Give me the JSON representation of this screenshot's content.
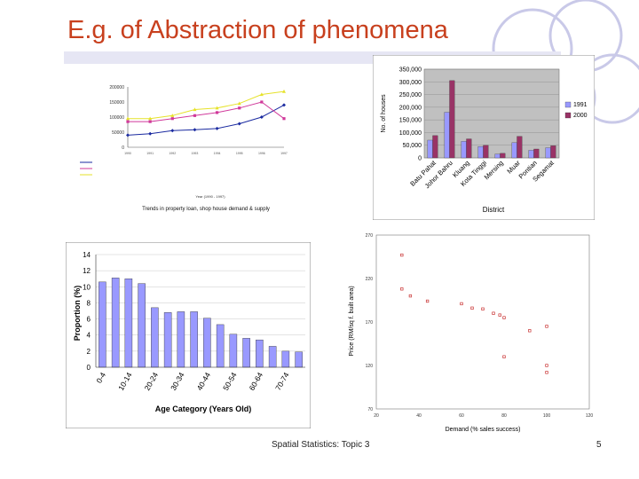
{
  "slide": {
    "title": "E.g. of Abstraction of phenomena",
    "footer": "Spatial Statistics: Topic 3",
    "page_number": "5",
    "colors": {
      "title": "#c8401e",
      "decor": "#c9c9e8"
    }
  },
  "chart_data": [
    {
      "type": "line",
      "title": "",
      "caption": "Trends in property loan, shop house demand & supply",
      "xlabel": "Year (1990 - 1997)",
      "ylabel": "",
      "ylim": [
        0,
        200000
      ],
      "yticks": [
        "0",
        "50000",
        "100000",
        "150000",
        "200000"
      ],
      "x": [
        "1990",
        "1991",
        "1992",
        "1993",
        "1994",
        "1995",
        "1996",
        "1997"
      ],
      "series": [
        {
          "color": "#1a2aa0",
          "marker": "diamond",
          "values": [
            40000,
            45000,
            55000,
            58000,
            62000,
            78000,
            100000,
            140000
          ]
        },
        {
          "color": "#d0389a",
          "marker": "square",
          "values": [
            85000,
            85000,
            95000,
            105000,
            115000,
            130000,
            150000,
            95000
          ]
        },
        {
          "color": "#e6e22a",
          "marker": "triangle",
          "values": [
            95000,
            95000,
            105000,
            125000,
            130000,
            145000,
            175000,
            185000
          ]
        }
      ],
      "legend_position": "bottom-table",
      "grid": false
    },
    {
      "type": "bar",
      "title": "",
      "xlabel": "District",
      "ylabel": "No. of houses",
      "ylim": [
        0,
        350000
      ],
      "yticks": [
        "0",
        "50,000",
        "100,000",
        "150,000",
        "200,000",
        "250,000",
        "300,000",
        "350,000"
      ],
      "categories": [
        "Batu Pahat",
        "Johor Bahru",
        "Kluang",
        "Kota Tinggi",
        "Mersing",
        "Muar",
        "Pontian",
        "Segamat"
      ],
      "series": [
        {
          "name": "1991",
          "color": "#9999ff",
          "values": [
            70000,
            180000,
            65000,
            45000,
            15000,
            60000,
            30000,
            40000
          ]
        },
        {
          "name": "2000",
          "color": "#993366",
          "values": [
            88000,
            305000,
            75000,
            50000,
            18000,
            85000,
            35000,
            48000
          ]
        }
      ],
      "legend_position": "right",
      "plot_background": "#c0c0c0",
      "grid": true
    },
    {
      "type": "bar",
      "title": "",
      "xlabel": "Age Category (Years Old)",
      "ylabel": "Proportion (%)",
      "ylim": [
        0,
        14
      ],
      "yticks": [
        "0",
        "2",
        "4",
        "6",
        "8",
        "10",
        "12",
        "14"
      ],
      "tick_labels": [
        "0-4",
        "10-14",
        "20-24",
        "30-34",
        "40-44",
        "50-54",
        "60-64",
        "70-74"
      ],
      "values": [
        10.6,
        11.1,
        11.0,
        10.4,
        7.4,
        6.8,
        6.9,
        6.9,
        6.1,
        5.3,
        4.1,
        3.6,
        3.4,
        2.6,
        2.0,
        1.9
      ],
      "color": "#9999ff",
      "grid": true
    },
    {
      "type": "scatter",
      "title": "",
      "xlabel": "Demand (% sales success)",
      "ylabel": "Price (RM/sq f. built area)",
      "xlim": [
        20,
        120
      ],
      "ylim": [
        70,
        270
      ],
      "xticks": [
        "20",
        "40",
        "60",
        "80",
        "100",
        "120"
      ],
      "yticks": [
        "70",
        "120",
        "170",
        "220",
        "270"
      ],
      "points": [
        [
          32,
          247
        ],
        [
          32,
          208
        ],
        [
          36,
          200
        ],
        [
          44,
          194
        ],
        [
          60,
          191
        ],
        [
          65,
          186
        ],
        [
          70,
          185
        ],
        [
          75,
          180
        ],
        [
          78,
          178
        ],
        [
          80,
          175
        ],
        [
          92,
          160
        ],
        [
          100,
          165
        ],
        [
          80,
          130
        ],
        [
          100,
          120
        ],
        [
          100,
          112
        ]
      ],
      "color": "#c83030",
      "grid": false
    }
  ]
}
